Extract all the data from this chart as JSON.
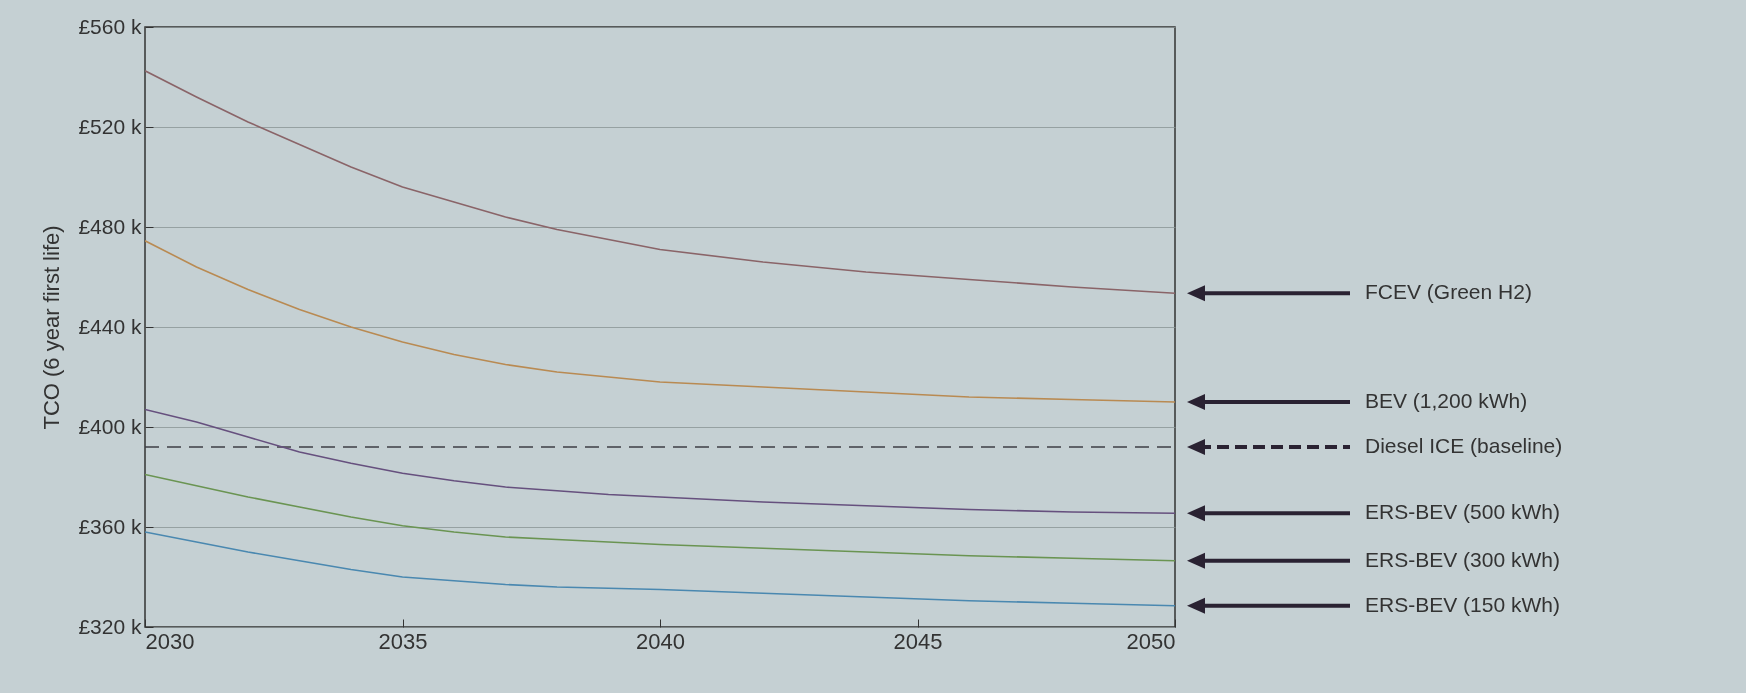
{
  "chart_data": {
    "type": "line",
    "ylabel": "TCO (6 year first life)",
    "x": [
      2030,
      2031,
      2032,
      2033,
      2034,
      2035,
      2036,
      2037,
      2038,
      2039,
      2040,
      2042,
      2044,
      2046,
      2048,
      2050
    ],
    "xlim": [
      2030,
      2050
    ],
    "xticks": [
      2030,
      2035,
      2040,
      2045,
      2050
    ],
    "ylim": [
      320,
      560
    ],
    "yticks": [
      {
        "value": 320,
        "label": "£320 k"
      },
      {
        "value": 360,
        "label": "£360 k"
      },
      {
        "value": 400,
        "label": "£400 k"
      },
      {
        "value": 440,
        "label": "£440 k"
      },
      {
        "value": 480,
        "label": "£480 k"
      },
      {
        "value": 520,
        "label": "£520 k"
      },
      {
        "value": 560,
        "label": "£560 k"
      }
    ],
    "grid": "y",
    "legend": false,
    "series": [
      {
        "name": "FCEV (Green H2)",
        "color": "#8a6468",
        "values": [
          542.5,
          532,
          522,
          513,
          504,
          496,
          490,
          484,
          479,
          475,
          471,
          466,
          462,
          459,
          456,
          453.5
        ]
      },
      {
        "name": "BEV (1,200 kWh)",
        "color": "#b98a52",
        "values": [
          474.5,
          464,
          455,
          447,
          440,
          434,
          429,
          425,
          422,
          420,
          418,
          416,
          414,
          412,
          411,
          410
        ]
      },
      {
        "name": "Diesel ICE (baseline)",
        "color": "#3e3e46",
        "line_style": "dashed",
        "values": [
          392,
          392,
          392,
          392,
          392,
          392,
          392,
          392,
          392,
          392,
          392,
          392,
          392,
          392,
          392,
          392
        ]
      },
      {
        "name": "ERS-BEV (500 kWh)",
        "color": "#66507e",
        "values": [
          407,
          402,
          396,
          390,
          385.5,
          381.5,
          378.5,
          376,
          374.5,
          373,
          372,
          370,
          368.5,
          367,
          366,
          365.5
        ]
      },
      {
        "name": "ERS-BEV (300 kWh)",
        "color": "#6a9452",
        "values": [
          381,
          376.5,
          372,
          368,
          364,
          360.5,
          358,
          356,
          355,
          354,
          353,
          351.5,
          350,
          348.5,
          347.5,
          346.5
        ]
      },
      {
        "name": "ERS-BEV (150 kWh)",
        "color": "#4a88b0",
        "values": [
          358,
          354,
          350,
          346.5,
          343,
          340,
          338.5,
          337,
          336,
          335.5,
          335,
          333.5,
          332,
          330.5,
          329.5,
          328.5
        ]
      }
    ]
  }
}
